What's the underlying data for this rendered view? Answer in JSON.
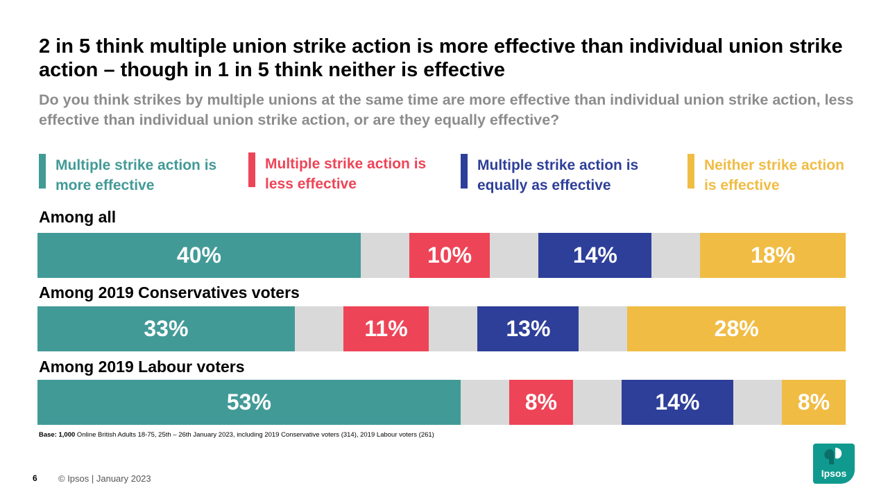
{
  "title": "2 in 5 think multiple union strike action is more effective than individual union strike action – though in 1 in 5 think neither is effective",
  "subtitle": "Do you think strikes by multiple unions at the same time are more effective than individual union strike action, less effective than individual union strike action, or are they equally effective?",
  "legend": [
    {
      "label": "Multiple strike action is more effective",
      "color": "#429a97"
    },
    {
      "label": "Multiple strike action is less effective",
      "color": "#ee4457"
    },
    {
      "label": "Multiple strike action is equally as effective",
      "color": "#2e3f99"
    },
    {
      "label": "Neither strike action is effective",
      "color": "#f0bc44"
    }
  ],
  "chart_data": {
    "type": "bar",
    "categories": [
      "Among all",
      "Among 2019 Conservatives voters",
      "Among 2019 Labour voters"
    ],
    "series": [
      {
        "name": "Multiple strike action is more effective",
        "values": [
          40,
          33,
          53
        ],
        "labels": [
          "40%",
          "33%",
          "53%"
        ],
        "color": "#429a97"
      },
      {
        "name": "Multiple strike action is less effective",
        "values": [
          10,
          11,
          8
        ],
        "labels": [
          "10%",
          "11%",
          "8%"
        ],
        "color": "#ee4457"
      },
      {
        "name": "Multiple strike action is equally as effective",
        "values": [
          14,
          13,
          14
        ],
        "labels": [
          "14%",
          "13%",
          "14%"
        ],
        "color": "#2e3f99"
      },
      {
        "name": "Neither strike action is effective",
        "values": [
          18,
          28,
          8
        ],
        "labels": [
          "18%",
          "28%",
          "8%"
        ],
        "color": "#f0bc44"
      }
    ],
    "gap_color": "#d9d9d9"
  },
  "base_bold": "Base: 1,000",
  "base_text": " Online British Adults 18-75, 25th – 26th January 2023, including 2019 Conservative voters (314), 2019 Labour voters (261)",
  "page_number": "6",
  "footer": "© Ipsos | January 2023",
  "logo_text": "Ipsos",
  "logo_color": "#109a8f"
}
